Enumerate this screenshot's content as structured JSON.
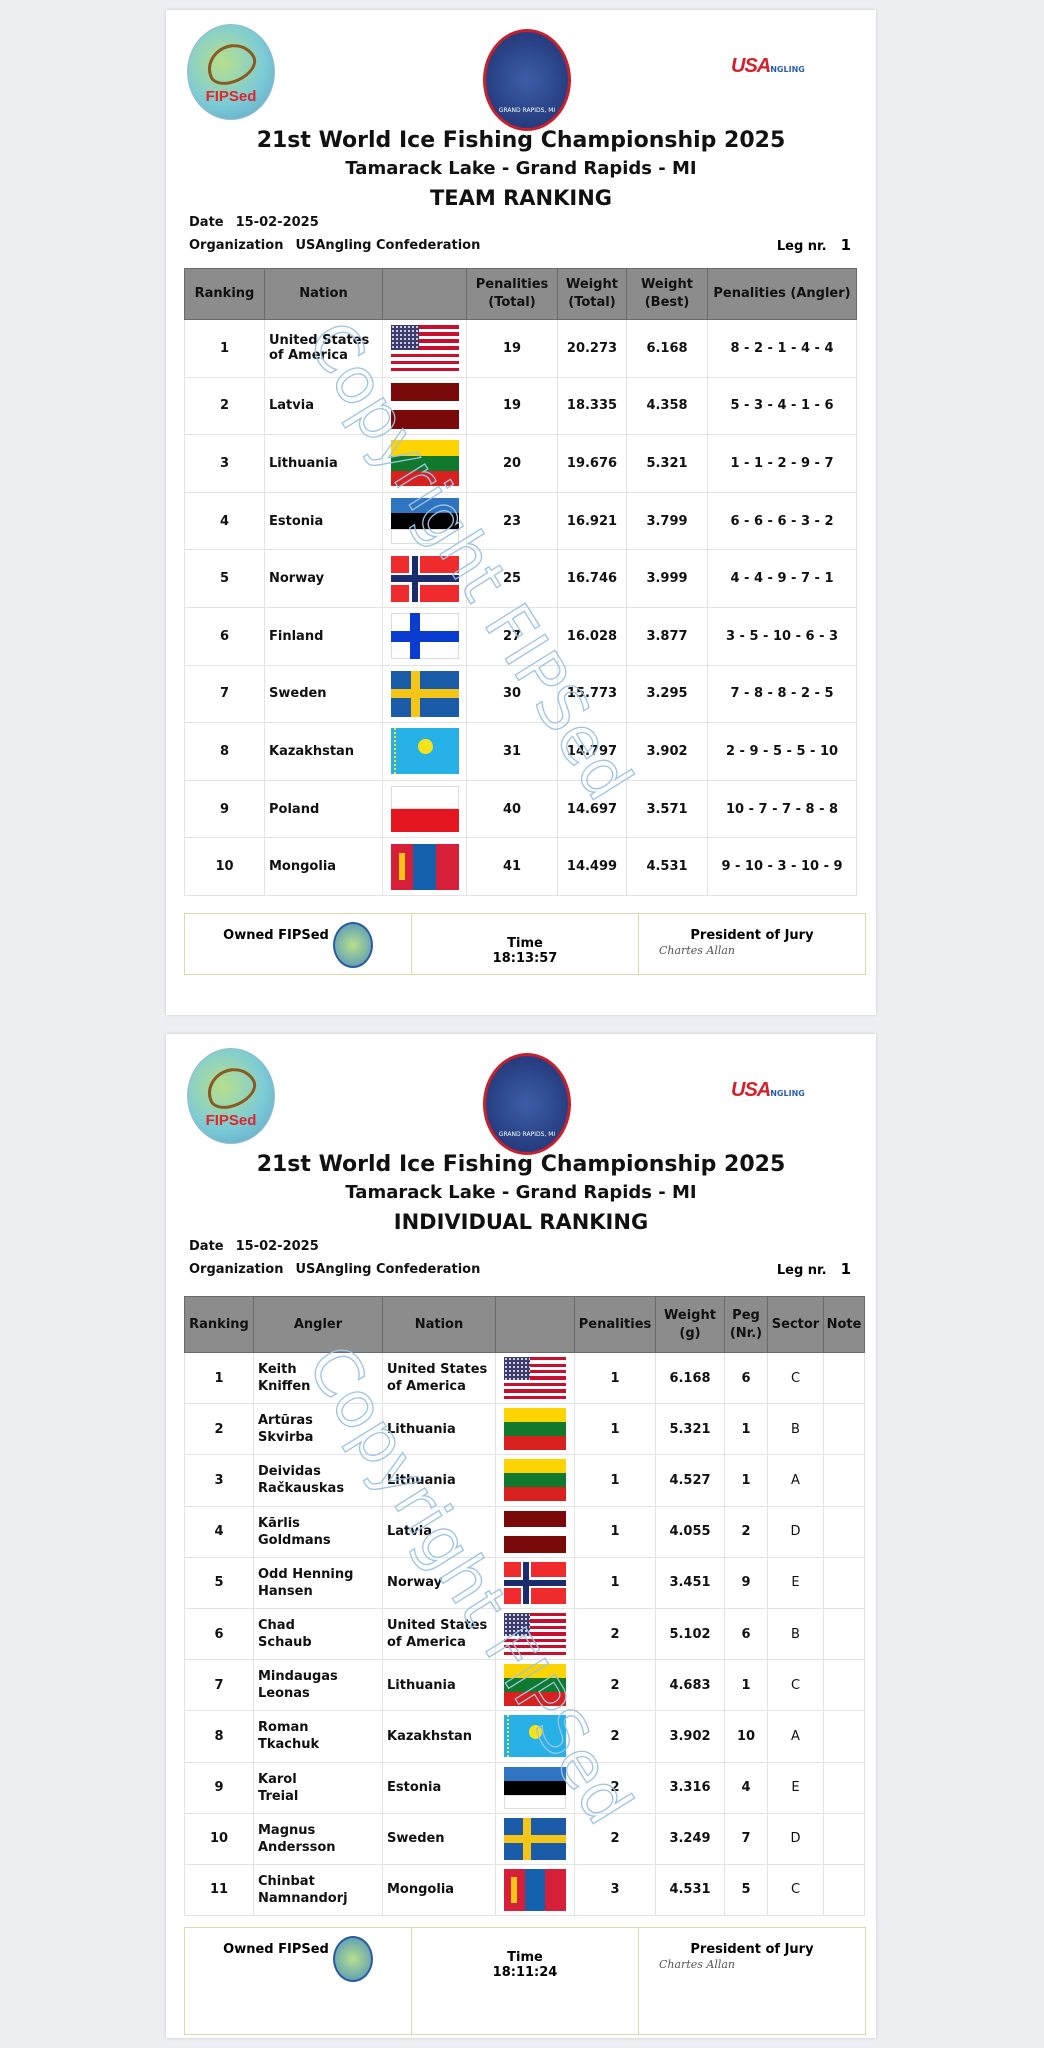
{
  "common": {
    "championship_title": "21st World Ice Fishing Championship 2025",
    "venue": "Tamarack Lake - Grand Rapids - MI",
    "date_label": "Date",
    "date": "15-02-2025",
    "org_label": "Organization",
    "organization": "USAngling Confederation",
    "leg_label": "Leg nr.",
    "leg": "1",
    "logo_left": "FIPSed",
    "logo_right": "USA",
    "logo_right_sub": "NGLING",
    "logo_center": "GRAND RAPIDS, MI",
    "watermark": "Copyright FIPSed",
    "owned_label": "Owned FIPSed",
    "time_label": "Time",
    "president_label": "President of Jury",
    "signature": "Chartes Allan"
  },
  "flag_colors": {
    "usa_red": "#c8102e",
    "usa_blue": "#3c3b6e",
    "latvia": "#7a0a0a",
    "lt_yellow": "#fdd400",
    "lt_green": "#0f7a2e",
    "lt_red": "#d8201f",
    "ee_blue": "#2f74c0",
    "no_red": "#ef2b2d",
    "no_blue": "#1a2b6e",
    "fi_blue": "#0a3cd0",
    "se_blue": "#1a5ca8",
    "se_yellow": "#f5c518",
    "kz_blue": "#27b1e6",
    "kz_yellow": "#f8e21a",
    "pl_red": "#e4161f",
    "mn_red": "#d6203a",
    "mn_blue": "#1460ad"
  },
  "team": {
    "heading": "TEAM RANKING",
    "columns": [
      "Ranking",
      "Nation",
      "",
      "Penalities (Total)",
      "Weight (Total)",
      "Weight (Best)",
      "Penalities (Angler)"
    ],
    "rows": [
      {
        "rank": "1",
        "nation": "United States of America",
        "flag": "usa",
        "pen": "19",
        "wt": "20.273",
        "best": "6.168",
        "angler": "8 - 2 - 1 - 4 - 4"
      },
      {
        "rank": "2",
        "nation": "Latvia",
        "flag": "lv",
        "pen": "19",
        "wt": "18.335",
        "best": "4.358",
        "angler": "5 - 3 - 4 - 1 - 6"
      },
      {
        "rank": "3",
        "nation": "Lithuania",
        "flag": "lt",
        "pen": "20",
        "wt": "19.676",
        "best": "5.321",
        "angler": "1 - 1 - 2 - 9 - 7"
      },
      {
        "rank": "4",
        "nation": "Estonia",
        "flag": "ee",
        "pen": "23",
        "wt": "16.921",
        "best": "3.799",
        "angler": "6 - 6 - 6 - 3 - 2"
      },
      {
        "rank": "5",
        "nation": "Norway",
        "flag": "no",
        "pen": "25",
        "wt": "16.746",
        "best": "3.999",
        "angler": "4 - 4 - 9 - 7 - 1"
      },
      {
        "rank": "6",
        "nation": "Finland",
        "flag": "fi",
        "pen": "27",
        "wt": "16.028",
        "best": "3.877",
        "angler": "3 - 5 - 10 - 6 - 3"
      },
      {
        "rank": "7",
        "nation": "Sweden",
        "flag": "se",
        "pen": "30",
        "wt": "15.773",
        "best": "3.295",
        "angler": "7 - 8 - 8 - 2 - 5"
      },
      {
        "rank": "8",
        "nation": "Kazakhstan",
        "flag": "kz",
        "pen": "31",
        "wt": "14.797",
        "best": "3.902",
        "angler": "2 - 9 - 5 - 5 - 10"
      },
      {
        "rank": "9",
        "nation": "Poland",
        "flag": "pl",
        "pen": "40",
        "wt": "14.697",
        "best": "3.571",
        "angler": "10 - 7 - 7 - 8 - 8"
      },
      {
        "rank": "10",
        "nation": "Mongolia",
        "flag": "mn",
        "pen": "41",
        "wt": "14.499",
        "best": "4.531",
        "angler": "9 - 10 - 3 - 10 - 9"
      }
    ],
    "time": "18:13:57"
  },
  "individual": {
    "heading": "INDIVIDUAL RANKING",
    "columns": [
      "Ranking",
      "Angler",
      "Nation",
      "",
      "Penalities",
      "Weight (g)",
      "Peg (Nr.)",
      "Sector",
      "Note"
    ],
    "rows": [
      {
        "rank": "1",
        "first": "Keith",
        "last": "Kniffen",
        "nation": "United States of America",
        "flag": "usa",
        "pen": "1",
        "wt": "6.168",
        "peg": "6",
        "sector": "C",
        "note": ""
      },
      {
        "rank": "2",
        "first": "Artūras",
        "last": "Skvirba",
        "nation": "Lithuania",
        "flag": "lt",
        "pen": "1",
        "wt": "5.321",
        "peg": "1",
        "sector": "B",
        "note": ""
      },
      {
        "rank": "3",
        "first": "Deividas",
        "last": "Račkauskas",
        "nation": "Lithuania",
        "flag": "lt",
        "pen": "1",
        "wt": "4.527",
        "peg": "1",
        "sector": "A",
        "note": ""
      },
      {
        "rank": "4",
        "first": "Kārlis",
        "last": "Goldmans",
        "nation": "Latvia",
        "flag": "lv",
        "pen": "1",
        "wt": "4.055",
        "peg": "2",
        "sector": "D",
        "note": ""
      },
      {
        "rank": "5",
        "first": "Odd Henning",
        "last": "Hansen",
        "nation": "Norway",
        "flag": "no",
        "pen": "1",
        "wt": "3.451",
        "peg": "9",
        "sector": "E",
        "note": ""
      },
      {
        "rank": "6",
        "first": "Chad",
        "last": "Schaub",
        "nation": "United States of America",
        "flag": "usa",
        "pen": "2",
        "wt": "5.102",
        "peg": "6",
        "sector": "B",
        "note": ""
      },
      {
        "rank": "7",
        "first": "Mindaugas",
        "last": "Leonas",
        "nation": "Lithuania",
        "flag": "lt",
        "pen": "2",
        "wt": "4.683",
        "peg": "1",
        "sector": "C",
        "note": ""
      },
      {
        "rank": "8",
        "first": "Roman",
        "last": "Tkachuk",
        "nation": "Kazakhstan",
        "flag": "kz",
        "pen": "2",
        "wt": "3.902",
        "peg": "10",
        "sector": "A",
        "note": ""
      },
      {
        "rank": "9",
        "first": "Karol",
        "last": "Treial",
        "nation": "Estonia",
        "flag": "ee",
        "pen": "2",
        "wt": "3.316",
        "peg": "4",
        "sector": "E",
        "note": ""
      },
      {
        "rank": "10",
        "first": "Magnus",
        "last": "Andersson",
        "nation": "Sweden",
        "flag": "se",
        "pen": "2",
        "wt": "3.249",
        "peg": "7",
        "sector": "D",
        "note": ""
      },
      {
        "rank": "11",
        "first": "Chinbat",
        "last": "Namnandorj",
        "nation": "Mongolia",
        "flag": "mn",
        "pen": "3",
        "wt": "4.531",
        "peg": "5",
        "sector": "C",
        "note": ""
      }
    ],
    "time": "18:11:24"
  }
}
